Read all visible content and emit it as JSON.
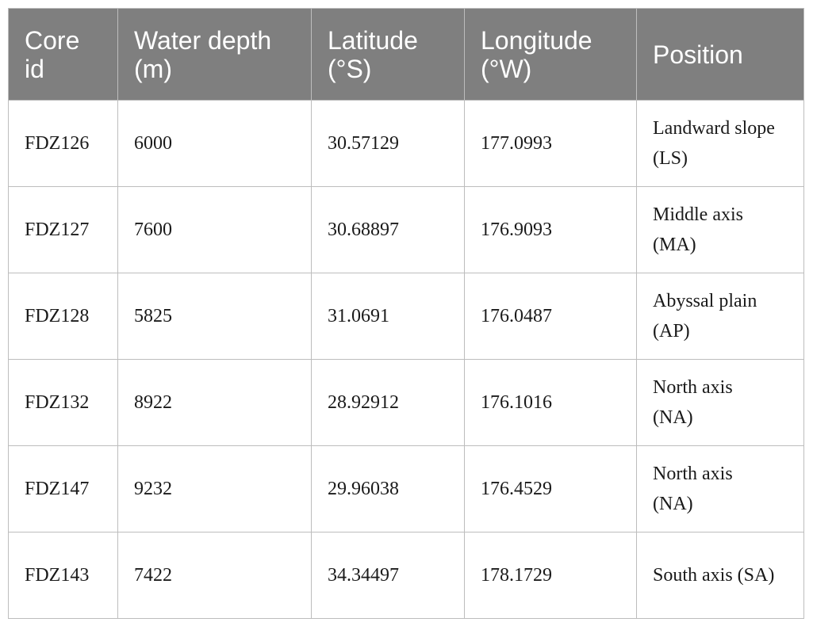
{
  "table": {
    "header": [
      "Core id",
      "Water depth (m)",
      "Latitude (°S)",
      "Longitude (°W)",
      "Position"
    ],
    "rows": [
      [
        "FDZ126",
        "6000",
        "30.57129",
        "177.0993",
        "Landward slope (LS)"
      ],
      [
        "FDZ127",
        "7600",
        "30.68897",
        "176.9093",
        "Middle axis (MA)"
      ],
      [
        "FDZ128",
        "5825",
        "31.0691",
        "176.0487",
        "Abyssal plain (AP)"
      ],
      [
        "FDZ132",
        "8922",
        "28.92912",
        "176.1016",
        "North axis (NA)"
      ],
      [
        "FDZ147",
        "9232",
        "29.96038",
        "176.4529",
        "North axis (NA)"
      ],
      [
        "FDZ143",
        "7422",
        "34.34497",
        "178.1729",
        "South axis (SA)"
      ]
    ]
  }
}
